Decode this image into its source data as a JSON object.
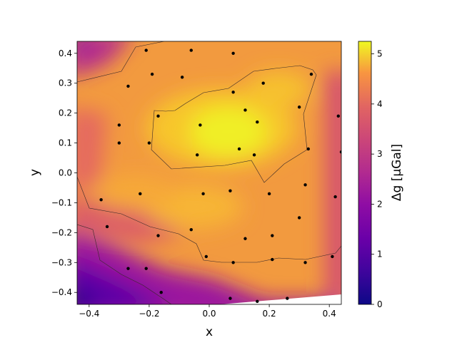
{
  "chart_data": {
    "type": "heatmap",
    "title": "",
    "xlabel": "x",
    "ylabel": "y",
    "xlim": [
      -0.44,
      0.44
    ],
    "ylim": [
      -0.44,
      0.44
    ],
    "xticks": [
      "−0.4",
      "−0.2",
      "0.0",
      "0.2",
      "0.4"
    ],
    "xtick_values": [
      -0.4,
      -0.2,
      0.0,
      0.2,
      0.4
    ],
    "yticks": [
      "−0.4",
      "−0.3",
      "−0.2",
      "−0.1",
      "0.0",
      "0.1",
      "0.2",
      "0.3",
      "0.4"
    ],
    "ytick_values": [
      -0.4,
      -0.3,
      -0.2,
      -0.1,
      0.0,
      0.1,
      0.2,
      0.3,
      0.4
    ],
    "colorbar": {
      "label": "Δg [μGal]",
      "colormap": "plasma",
      "range": [
        0,
        5.25
      ],
      "ticks": [
        "0",
        "1",
        "2",
        "3",
        "4",
        "5"
      ],
      "tick_values": [
        0,
        1,
        2,
        3,
        4,
        5
      ]
    },
    "contour_levels": [
      2,
      4
    ],
    "points": [
      {
        "x": -0.21,
        "y": 0.41
      },
      {
        "x": -0.06,
        "y": 0.41
      },
      {
        "x": 0.08,
        "y": 0.4
      },
      {
        "x": -0.19,
        "y": 0.33
      },
      {
        "x": -0.09,
        "y": 0.32
      },
      {
        "x": -0.27,
        "y": 0.29
      },
      {
        "x": 0.18,
        "y": 0.3
      },
      {
        "x": 0.34,
        "y": 0.33
      },
      {
        "x": 0.08,
        "y": 0.27
      },
      {
        "x": 0.12,
        "y": 0.21
      },
      {
        "x": -0.17,
        "y": 0.19
      },
      {
        "x": 0.3,
        "y": 0.22
      },
      {
        "x": -0.3,
        "y": 0.16
      },
      {
        "x": -0.03,
        "y": 0.16
      },
      {
        "x": 0.16,
        "y": 0.17
      },
      {
        "x": 0.43,
        "y": 0.19
      },
      {
        "x": -0.3,
        "y": 0.1
      },
      {
        "x": -0.2,
        "y": 0.1
      },
      {
        "x": 0.1,
        "y": 0.08
      },
      {
        "x": 0.33,
        "y": 0.08
      },
      {
        "x": -0.04,
        "y": 0.06
      },
      {
        "x": 0.15,
        "y": 0.06
      },
      {
        "x": 0.44,
        "y": 0.07
      },
      {
        "x": 0.07,
        "y": -0.06
      },
      {
        "x": -0.23,
        "y": -0.07
      },
      {
        "x": -0.02,
        "y": -0.07
      },
      {
        "x": 0.2,
        "y": -0.07
      },
      {
        "x": 0.32,
        "y": -0.04
      },
      {
        "x": 0.42,
        "y": -0.08
      },
      {
        "x": -0.36,
        "y": -0.09
      },
      {
        "x": 0.3,
        "y": -0.15
      },
      {
        "x": -0.34,
        "y": -0.18
      },
      {
        "x": -0.06,
        "y": -0.19
      },
      {
        "x": -0.17,
        "y": -0.21
      },
      {
        "x": 0.21,
        "y": -0.21
      },
      {
        "x": 0.12,
        "y": -0.22
      },
      {
        "x": -0.01,
        "y": -0.28
      },
      {
        "x": 0.21,
        "y": -0.29
      },
      {
        "x": 0.08,
        "y": -0.3
      },
      {
        "x": 0.32,
        "y": -0.3
      },
      {
        "x": 0.41,
        "y": -0.28
      },
      {
        "x": -0.27,
        "y": -0.32
      },
      {
        "x": -0.21,
        "y": -0.32
      },
      {
        "x": -0.16,
        "y": -0.4
      },
      {
        "x": 0.07,
        "y": -0.42
      },
      {
        "x": 0.16,
        "y": -0.43
      },
      {
        "x": 0.26,
        "y": -0.42
      }
    ]
  }
}
